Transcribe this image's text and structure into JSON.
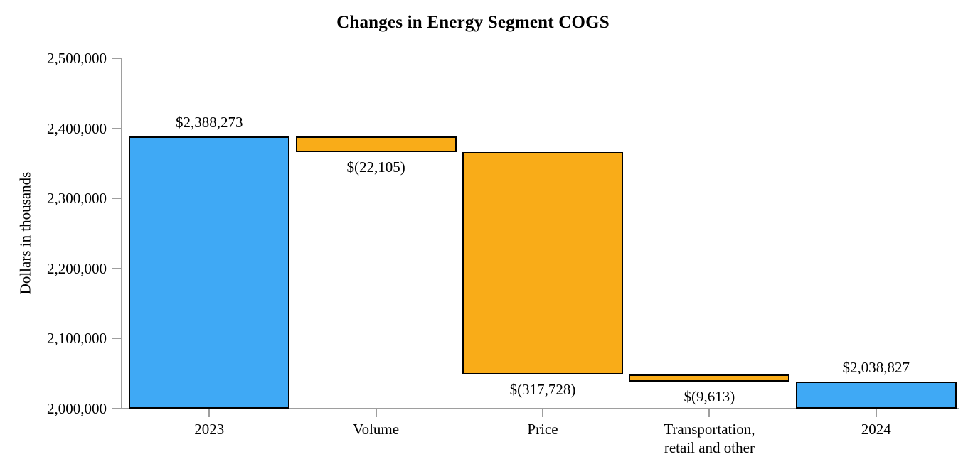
{
  "chart_data": {
    "type": "bar",
    "subtype": "waterfall",
    "title": "Changes in Energy Segment COGS",
    "xlabel": "",
    "ylabel": "Dollars in thousands",
    "ylim": [
      2000000,
      2500000
    ],
    "y_ticks": [
      2000000,
      2100000,
      2200000,
      2300000,
      2400000,
      2500000
    ],
    "y_tick_labels": [
      "2,000,000",
      "2,100,000",
      "2,200,000",
      "2,300,000",
      "2,400,000",
      "2,500,000"
    ],
    "grid": false,
    "legend": false,
    "categories": [
      "2023",
      "Volume",
      "Price",
      "Transportation, retail and other",
      "2024"
    ],
    "bars": [
      {
        "category_lines": [
          "2023"
        ],
        "kind": "total",
        "value": 2388273,
        "data_label": "$2,388,273",
        "label_side": "above",
        "color_key": "total"
      },
      {
        "category_lines": [
          "Volume"
        ],
        "kind": "change",
        "value": -22105,
        "data_label": "$(22,105)",
        "label_side": "below",
        "color_key": "change"
      },
      {
        "category_lines": [
          "Price"
        ],
        "kind": "change",
        "value": -317728,
        "data_label": "$(317,728)",
        "label_side": "below",
        "color_key": "change"
      },
      {
        "category_lines": [
          "Transportation,",
          "retail and other"
        ],
        "kind": "change",
        "value": -9613,
        "data_label": "$(9,613)",
        "label_side": "below",
        "color_key": "change"
      },
      {
        "category_lines": [
          "2024"
        ],
        "kind": "total",
        "value": 2038827,
        "data_label": "$2,038,827",
        "label_side": "above",
        "color_key": "total"
      }
    ],
    "colors": {
      "total": "#3FA9F5",
      "change": "#F9AC18",
      "bar_border": "#000000",
      "axis": "#9E9E9E",
      "text": "#000000",
      "background": "#FFFFFF"
    }
  }
}
